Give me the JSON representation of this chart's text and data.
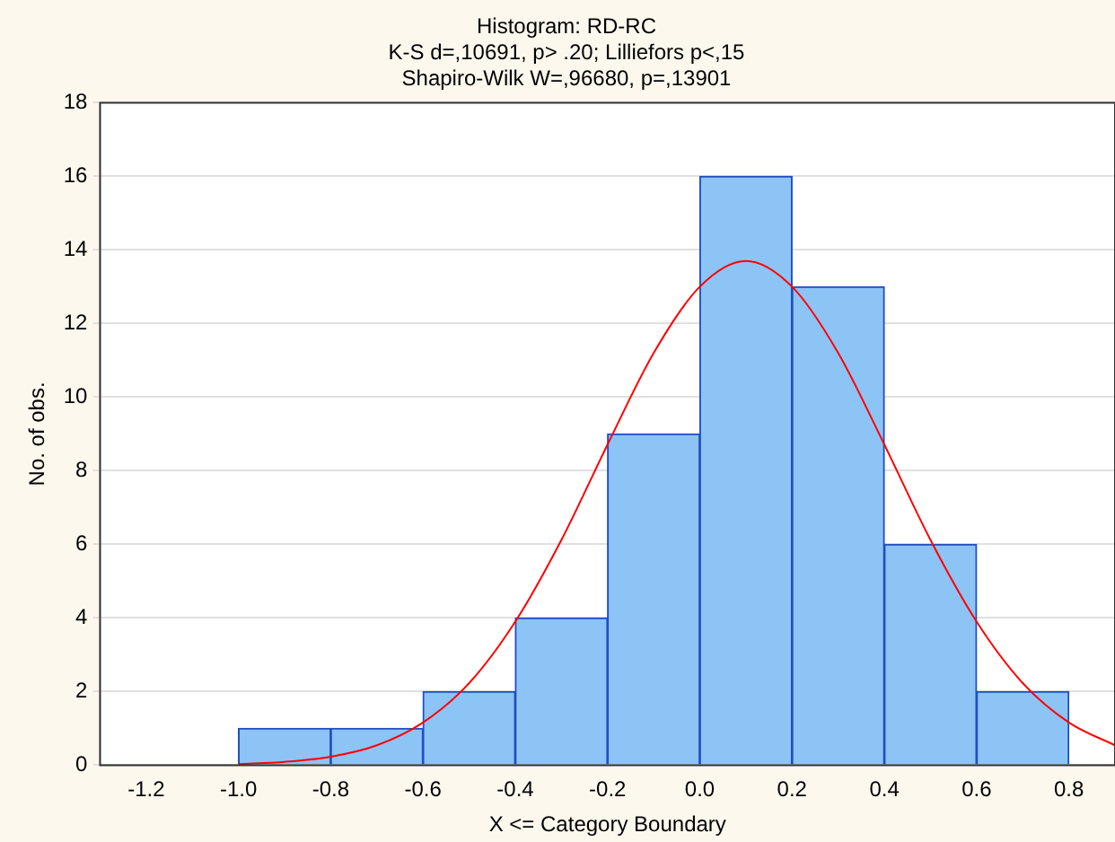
{
  "chart_data": {
    "type": "histogram",
    "title": "Histogram: RD-RC",
    "subtitle": "K-S d=,10691, p> .20; Lilliefors p<,15\nShapiro-Wilk W=,96680, p=,13901",
    "xlabel": "X <= Category Boundary",
    "ylabel": "No. of obs.",
    "bins": [
      -1.0,
      -0.8,
      -0.6,
      -0.4,
      -0.2,
      0,
      0.2,
      0.4,
      0.6,
      0.8
    ],
    "values": [
      1,
      1,
      2,
      4,
      9,
      16,
      13,
      6,
      2
    ],
    "color": "#8cc4f5",
    "series": [
      {
        "type": "line",
        "color": "#ff0000",
        "marker": "none",
        "x": [
          -1.0,
          -0.9,
          -0.8,
          -0.7,
          -0.6,
          -0.5,
          -0.4,
          -0.3,
          -0.2,
          -0.1,
          0,
          0.1,
          0.2,
          0.3,
          0.4,
          0.5,
          0.6,
          0.7,
          0.8,
          0.9
        ],
        "values": [
          0.03,
          0.09,
          0.23,
          0.54,
          1.16,
          2.23,
          3.9,
          6.12,
          8.71,
          11.2,
          13.0,
          13.7,
          13.0,
          11.2,
          8.71,
          6.12,
          3.9,
          2.23,
          1.16,
          0.54
        ]
      }
    ],
    "xlim": [
      -1.3,
      0.9
    ],
    "xticks": [
      -1.2,
      {
        "value": -1.0,
        "label": "-1.0"
      },
      -0.8,
      -0.6,
      -0.4,
      -0.2,
      {
        "value": 0,
        "label": "0.0"
      },
      0.2,
      0.4,
      0.6,
      0.8
    ],
    "ylim": [
      0,
      18
    ],
    "yticks": [
      0,
      2,
      4,
      6,
      8,
      10,
      12,
      14,
      16,
      18
    ],
    "grid": "y",
    "legend": false
  }
}
